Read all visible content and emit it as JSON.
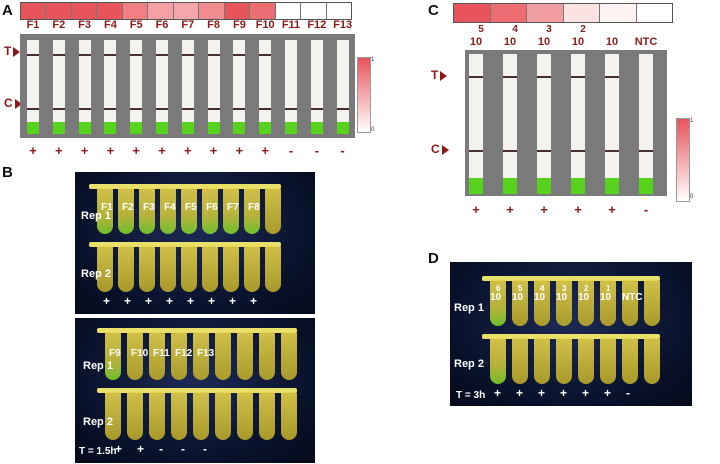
{
  "panel_a": {
    "label": "A",
    "heatmap_colors": [
      "#e8545b",
      "#e8545b",
      "#e8545b",
      "#e8545b",
      "#f17f84",
      "#f5a0a4",
      "#f5a6aa",
      "#f08b90",
      "#e8545b",
      "#ec6e73",
      "#ffffff",
      "#ffffff",
      "#ffffff"
    ],
    "samples": [
      "F1",
      "F2",
      "F3",
      "F4",
      "F5",
      "F6",
      "F7",
      "F8",
      "F9",
      "F10",
      "F11",
      "F12",
      "F13"
    ],
    "t_label": "T",
    "c_label": "C",
    "scale_top": "1",
    "scale_bottom": "0",
    "results": [
      "+",
      "+",
      "+",
      "+",
      "+",
      "+",
      "+",
      "+",
      "+",
      "+",
      "-",
      "-",
      "-"
    ]
  },
  "panel_b": {
    "label": "B",
    "top": {
      "samples": [
        "F1",
        "F2",
        "F3",
        "F4",
        "F5",
        "F6",
        "F7",
        "F8"
      ],
      "rep1": "Rep 1",
      "rep2": "Rep 2",
      "results": [
        "+",
        "+",
        "+",
        "+",
        "+",
        "+",
        "+",
        "+"
      ]
    },
    "bottom": {
      "samples": [
        "F9",
        "F10",
        "F11",
        "F12",
        "F13"
      ],
      "rep1": "Rep 1",
      "rep2": "Rep 2",
      "time": "T = 1.5h",
      "results": [
        "+",
        "+",
        "-",
        "-",
        "-"
      ]
    }
  },
  "panel_c": {
    "label": "C",
    "heatmap_colors": [
      "#e8545b",
      "#ec6c72",
      "#f19ea2",
      "#fbe3e4",
      "#fdf3f3",
      "#ffffff"
    ],
    "exponents": [
      "5",
      "4",
      "3",
      "2",
      "",
      ""
    ],
    "bases": [
      "10",
      "10",
      "10",
      "10",
      "10",
      "NTC"
    ],
    "t_label": "T",
    "c_label": "C",
    "scale_top": "1",
    "scale_bottom": "0",
    "results": [
      "+",
      "+",
      "+",
      "+",
      "+",
      "-"
    ]
  },
  "panel_d": {
    "label": "D",
    "exponents": [
      "6",
      "5",
      "4",
      "3",
      "2",
      "1",
      ""
    ],
    "bases": [
      "10",
      "10",
      "10",
      "10",
      "10",
      "10",
      "NTC"
    ],
    "rep1": "Rep 1",
    "rep2": "Rep 2",
    "time": "T = 3h",
    "results": [
      "+",
      "+",
      "+",
      "+",
      "+",
      "+",
      "-"
    ]
  }
}
